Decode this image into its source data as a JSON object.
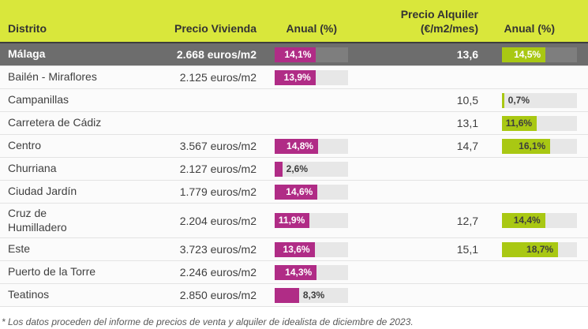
{
  "table": {
    "columns": {
      "district": "Distrito",
      "price": "Precio Vivienda",
      "price_annual": "Anual (%)",
      "rent": "Precio Alquiler\n(€/m2/mes)",
      "rent_annual": "Anual (%)"
    },
    "colors": {
      "header_bg": "#d9e73b",
      "header_border": "#3d3d3d",
      "highlight_row_bg": "#6d6d6d",
      "magenta_bar": "#b02c86",
      "green_bar": "#a9c813",
      "track": "#e7e7e7"
    },
    "bar_scale_max": 25,
    "rows": [
      {
        "district": "Málaga",
        "price": "2.668 euros/m2",
        "price_annual_value": 14.1,
        "price_annual_label": "14,1%",
        "price_annual_label_pos": "inside",
        "rent": "13,6",
        "rent_annual_value": 14.5,
        "rent_annual_label": "14,5%",
        "rent_annual_label_pos": "inside",
        "highlight": true
      },
      {
        "district": "Bailén - Miraflores",
        "price": "2.125 euros/m2",
        "price_annual_value": 13.9,
        "price_annual_label": "13,9%",
        "price_annual_label_pos": "inside",
        "rent": "",
        "rent_annual_value": null,
        "rent_annual_label": "",
        "highlight": false
      },
      {
        "district": "Campanillas",
        "price": "",
        "price_annual_value": null,
        "price_annual_label": "",
        "rent": "10,5",
        "rent_annual_value": 0.7,
        "rent_annual_label": "0,7%",
        "rent_annual_label_pos": "outside",
        "highlight": false
      },
      {
        "district": "Carretera de Cádiz",
        "price": "",
        "price_annual_value": null,
        "price_annual_label": "",
        "rent": "13,1",
        "rent_annual_value": 11.6,
        "rent_annual_label": "11,6%",
        "rent_annual_label_pos": "inside",
        "highlight": false
      },
      {
        "district": "Centro",
        "price": "3.567 euros/m2",
        "price_annual_value": 14.8,
        "price_annual_label": "14,8%",
        "price_annual_label_pos": "inside",
        "rent": "14,7",
        "rent_annual_value": 16.1,
        "rent_annual_label": "16,1%",
        "rent_annual_label_pos": "inside",
        "highlight": false
      },
      {
        "district": "Churriana",
        "price": "2.127 euros/m2",
        "price_annual_value": 2.6,
        "price_annual_label": "2,6%",
        "price_annual_label_pos": "outside",
        "rent": "",
        "rent_annual_value": null,
        "rent_annual_label": "",
        "highlight": false
      },
      {
        "district": "Ciudad Jardín",
        "price": "1.779 euros/m2",
        "price_annual_value": 14.6,
        "price_annual_label": "14,6%",
        "price_annual_label_pos": "inside",
        "rent": "",
        "rent_annual_value": null,
        "rent_annual_label": "",
        "highlight": false
      },
      {
        "district": "Cruz de\nHumilladero",
        "price": "2.204 euros/m2",
        "price_annual_value": 11.9,
        "price_annual_label": "11,9%",
        "price_annual_label_pos": "inside",
        "rent": "12,7",
        "rent_annual_value": 14.4,
        "rent_annual_label": "14,4%",
        "rent_annual_label_pos": "inside",
        "highlight": false
      },
      {
        "district": "Este",
        "price": "3.723 euros/m2",
        "price_annual_value": 13.6,
        "price_annual_label": "13,6%",
        "price_annual_label_pos": "inside",
        "rent": "15,1",
        "rent_annual_value": 18.7,
        "rent_annual_label": "18,7%",
        "rent_annual_label_pos": "inside",
        "highlight": false
      },
      {
        "district": "Puerto de la Torre",
        "price": "2.246 euros/m2",
        "price_annual_value": 14.3,
        "price_annual_label": "14,3%",
        "price_annual_label_pos": "inside",
        "rent": "",
        "rent_annual_value": null,
        "rent_annual_label": "",
        "highlight": false
      },
      {
        "district": "Teatinos",
        "price": "2.850 euros/m2",
        "price_annual_value": 8.3,
        "price_annual_label": "8,3%",
        "price_annual_label_pos": "outside",
        "rent": "",
        "rent_annual_value": null,
        "rent_annual_label": "",
        "highlight": false
      }
    ]
  },
  "footnote": "* Los datos proceden del informe de precios de venta y alquiler de idealista de diciembre de 2023.",
  "chart_data": {
    "type": "table",
    "title": "",
    "columns": [
      "Distrito",
      "Precio Vivienda",
      "Anual (%)",
      "Precio Alquiler (€/m2/mes)",
      "Anual (%)"
    ],
    "bar_axis_max_percent": 25,
    "rows": [
      {
        "distrito": "Málaga",
        "precio_vivienda_eur_m2": 2668,
        "anual_vivienda_pct": 14.1,
        "precio_alquiler_eur_m2_mes": 13.6,
        "anual_alquiler_pct": 14.5
      },
      {
        "distrito": "Bailén - Miraflores",
        "precio_vivienda_eur_m2": 2125,
        "anual_vivienda_pct": 13.9,
        "precio_alquiler_eur_m2_mes": null,
        "anual_alquiler_pct": null
      },
      {
        "distrito": "Campanillas",
        "precio_vivienda_eur_m2": null,
        "anual_vivienda_pct": null,
        "precio_alquiler_eur_m2_mes": 10.5,
        "anual_alquiler_pct": 0.7
      },
      {
        "distrito": "Carretera de Cádiz",
        "precio_vivienda_eur_m2": null,
        "anual_vivienda_pct": null,
        "precio_alquiler_eur_m2_mes": 13.1,
        "anual_alquiler_pct": 11.6
      },
      {
        "distrito": "Centro",
        "precio_vivienda_eur_m2": 3567,
        "anual_vivienda_pct": 14.8,
        "precio_alquiler_eur_m2_mes": 14.7,
        "anual_alquiler_pct": 16.1
      },
      {
        "distrito": "Churriana",
        "precio_vivienda_eur_m2": 2127,
        "anual_vivienda_pct": 2.6,
        "precio_alquiler_eur_m2_mes": null,
        "anual_alquiler_pct": null
      },
      {
        "distrito": "Ciudad Jardín",
        "precio_vivienda_eur_m2": 1779,
        "anual_vivienda_pct": 14.6,
        "precio_alquiler_eur_m2_mes": null,
        "anual_alquiler_pct": null
      },
      {
        "distrito": "Cruz de Humilladero",
        "precio_vivienda_eur_m2": 2204,
        "anual_vivienda_pct": 11.9,
        "precio_alquiler_eur_m2_mes": 12.7,
        "anual_alquiler_pct": 14.4
      },
      {
        "distrito": "Este",
        "precio_vivienda_eur_m2": 3723,
        "anual_vivienda_pct": 13.6,
        "precio_alquiler_eur_m2_mes": 15.1,
        "anual_alquiler_pct": 18.7
      },
      {
        "distrito": "Puerto de la Torre",
        "precio_vivienda_eur_m2": 2246,
        "anual_vivienda_pct": 14.3,
        "precio_alquiler_eur_m2_mes": null,
        "anual_alquiler_pct": null
      },
      {
        "distrito": "Teatinos",
        "precio_vivienda_eur_m2": 2850,
        "anual_vivienda_pct": 8.3,
        "precio_alquiler_eur_m2_mes": null,
        "anual_alquiler_pct": null
      }
    ],
    "footnote": "* Los datos proceden del informe de precios de venta y alquiler de idealista de diciembre de 2023."
  }
}
